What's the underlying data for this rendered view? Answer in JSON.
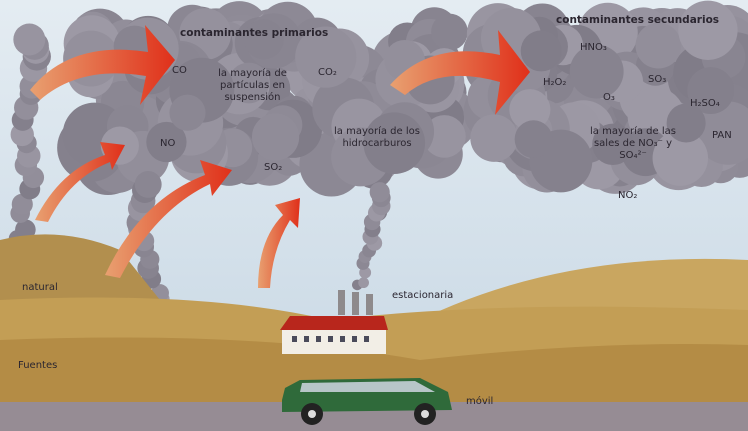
{
  "header": {
    "primary_title": "contaminantes primarios",
    "secondary_title": "contaminantes secundarios"
  },
  "primary": {
    "labels": [
      "CO",
      "CO₂",
      "la mayoría de partículas en suspensión",
      "NO",
      "SO₂",
      "la mayoría de los hidrocarburos"
    ]
  },
  "secondary": {
    "labels": [
      "HNO₃",
      "H₂O₂",
      "SO₃",
      "O₃",
      "H₂SO₄",
      "PAN",
      "la mayoría de las sales de NO₃⁻ y SO₄²⁻",
      "NO₂"
    ]
  },
  "sources": {
    "title": "Fuentes",
    "labels": [
      "natural",
      "estacionaria",
      "móvil"
    ]
  }
}
